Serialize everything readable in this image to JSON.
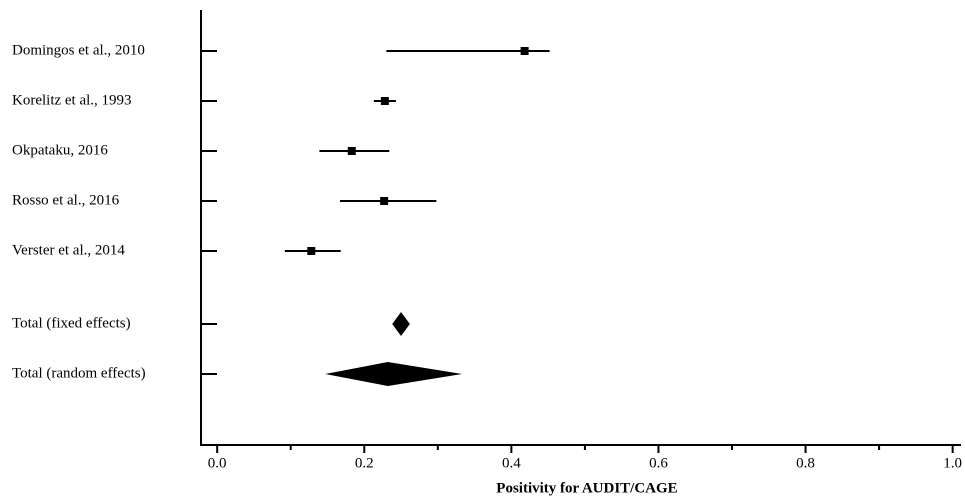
{
  "chart_data": {
    "type": "forest",
    "xlabel": "Positivity for AUDIT/CAGE",
    "studies": [
      {
        "label": "Domingos et al., 2010",
        "estimate": 0.418,
        "lower": 0.23,
        "upper": 0.452
      },
      {
        "label": "Korelitz et al., 1993",
        "estimate": 0.228,
        "lower": 0.213,
        "upper": 0.243
      },
      {
        "label": "Okpataku, 2016",
        "estimate": 0.183,
        "lower": 0.139,
        "upper": 0.234
      },
      {
        "label": "Rosso et al., 2016",
        "estimate": 0.227,
        "lower": 0.167,
        "upper": 0.298
      },
      {
        "label": "Verster et al., 2014",
        "estimate": 0.128,
        "lower": 0.092,
        "upper": 0.168
      }
    ],
    "pooled": [
      {
        "label": "Total (fixed effects)",
        "estimate": 0.25,
        "lower": 0.238,
        "upper": 0.262
      },
      {
        "label": "Total (random effects)",
        "estimate": 0.232,
        "lower": 0.147,
        "upper": 0.333
      }
    ],
    "xlim": [
      -0.022,
      1.01
    ],
    "xticks": [
      {
        "value": 0,
        "label": "0.0"
      },
      0.2,
      0.4,
      0.6,
      0.8,
      {
        "value": 1,
        "label": "1.0"
      }
    ],
    "xminorticks": [
      0.1,
      0.3,
      0.5,
      0.7,
      0.9
    ],
    "color": "#000000"
  }
}
